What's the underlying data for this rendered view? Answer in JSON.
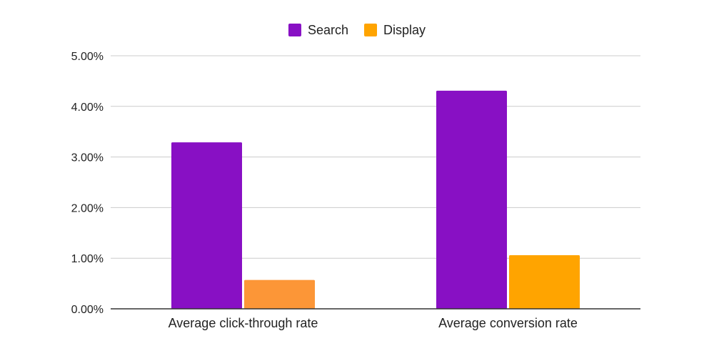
{
  "chart_data": {
    "type": "bar",
    "title": "",
    "xlabel": "",
    "ylabel": "",
    "categories": [
      "Average click-through rate",
      "Average conversion rate"
    ],
    "series": [
      {
        "name": "Search",
        "color": "#8810c4",
        "values": [
          3.29,
          4.31
        ]
      },
      {
        "name": "Display",
        "color": "#ffa400",
        "values": [
          0.57,
          1.06
        ],
        "point_colors": [
          "#fc9637",
          "#ffa400"
        ]
      }
    ],
    "ylim": [
      0,
      5
    ],
    "yticks": [
      0,
      1,
      2,
      3,
      4,
      5
    ],
    "ytick_labels": [
      "0.00%",
      "1.00%",
      "2.00%",
      "3.00%",
      "4.00%",
      "5.00%"
    ],
    "grid": true,
    "legend_position": "top-center"
  }
}
